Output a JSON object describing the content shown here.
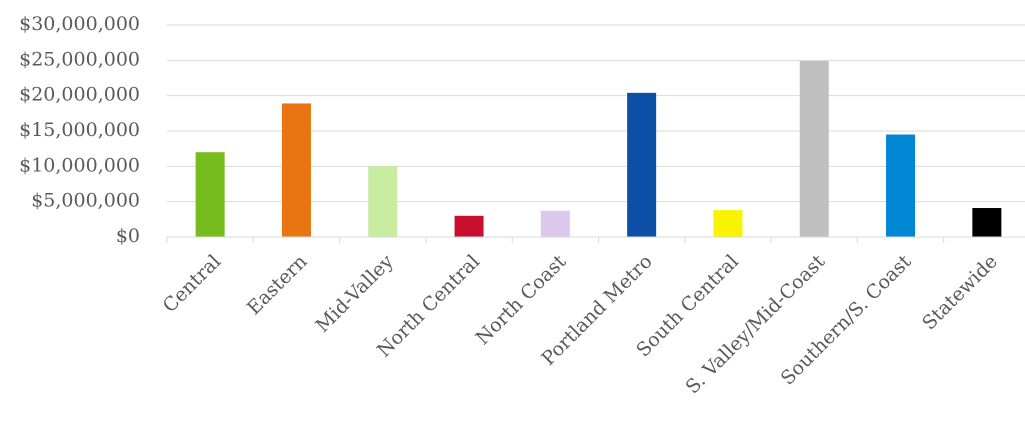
{
  "chart_data": {
    "type": "bar",
    "title": "",
    "xlabel": "",
    "ylabel": "",
    "categories": [
      "Central",
      "Eastern",
      "Mid-Valley",
      "North Central",
      "North Coast",
      "Portland Metro",
      "South Central",
      "S. Valley/Mid-Coast",
      "Southern/S. Coast",
      "Statewide"
    ],
    "values": [
      12000000,
      18900000,
      10000000,
      3000000,
      3700000,
      20400000,
      3800000,
      24900000,
      14500000,
      4100000
    ],
    "colors": [
      "#77bc1f",
      "#e87511",
      "#c8eca0",
      "#c8102e",
      "#dcc8ed",
      "#0b50a6",
      "#f9f200",
      "#bfbfbf",
      "#0087d4",
      "#000000"
    ],
    "ylim": [
      0,
      30000000
    ],
    "yticks": [
      0,
      5000000,
      10000000,
      15000000,
      20000000,
      25000000,
      30000000
    ],
    "ytick_labels": [
      "$0",
      "$5,000,000",
      "$10,000,000",
      "$15,000,000",
      "$20,000,000",
      "$25,000,000",
      "$30,000,000"
    ],
    "grid": true,
    "legend": "none"
  }
}
